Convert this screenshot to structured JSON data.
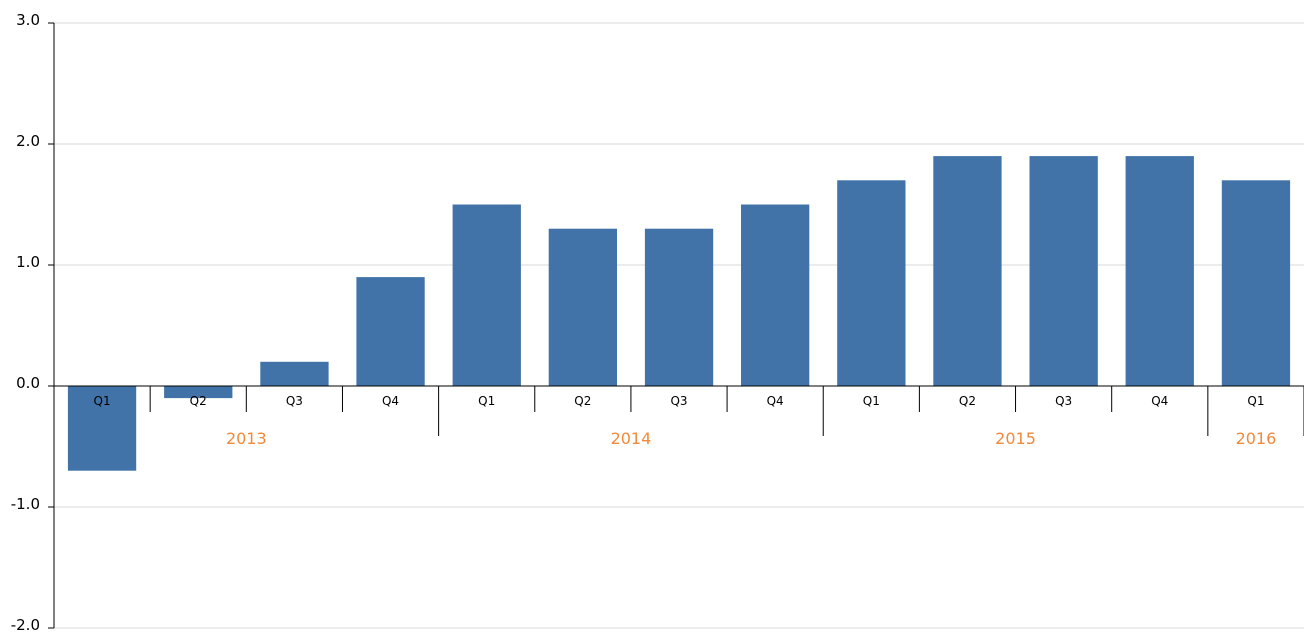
{
  "chart_data": {
    "type": "bar",
    "title": "",
    "xlabel": "",
    "ylabel": "",
    "ylim": [
      -2.0,
      3.0
    ],
    "yticks": [
      "-2.0",
      "-1.0",
      "0.0",
      "1.0",
      "2.0",
      "3.0"
    ],
    "grid": true,
    "colors": {
      "bar": "#4173a8",
      "year_label": "#f08a3c",
      "grid": "#d9d9d9"
    },
    "categories": [
      "Q1",
      "Q2",
      "Q3",
      "Q4",
      "Q1",
      "Q2",
      "Q3",
      "Q4",
      "Q1",
      "Q2",
      "Q3",
      "Q4",
      "Q1"
    ],
    "years": [
      {
        "label": "2013",
        "count": 4
      },
      {
        "label": "2014",
        "count": 4
      },
      {
        "label": "2015",
        "count": 4
      },
      {
        "label": "2016",
        "count": 1
      }
    ],
    "values": [
      -0.7,
      -0.1,
      0.2,
      0.9,
      1.5,
      1.3,
      1.3,
      1.5,
      1.7,
      1.9,
      1.9,
      1.9,
      1.7
    ]
  }
}
